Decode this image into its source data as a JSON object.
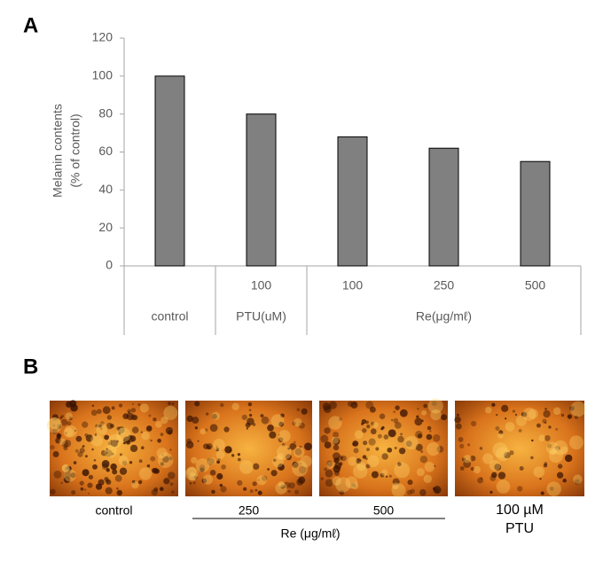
{
  "panels": {
    "a": "A",
    "b": "B"
  },
  "chart_data": {
    "type": "bar",
    "y_label": [
      "Melanin contents",
      "(% of control)"
    ],
    "categories": [
      null,
      "100",
      "100",
      "250",
      "500"
    ],
    "groups": [
      {
        "name": "control",
        "count": 1
      },
      {
        "name": "PTU(uM)",
        "count": 1
      },
      {
        "name": "Re(μg/mℓ)",
        "count": 3
      }
    ],
    "values": [
      100,
      80,
      68,
      62,
      55
    ],
    "color": "#808080",
    "ylim": [
      0,
      120
    ],
    "yticks": [
      0,
      20,
      40,
      60,
      80,
      100,
      120
    ],
    "grid": false
  },
  "images": {
    "captions": [
      "control",
      "250",
      "500",
      [
        "100 µM",
        "PTU"
      ]
    ],
    "re_label": "Re (μg/mℓ)"
  }
}
